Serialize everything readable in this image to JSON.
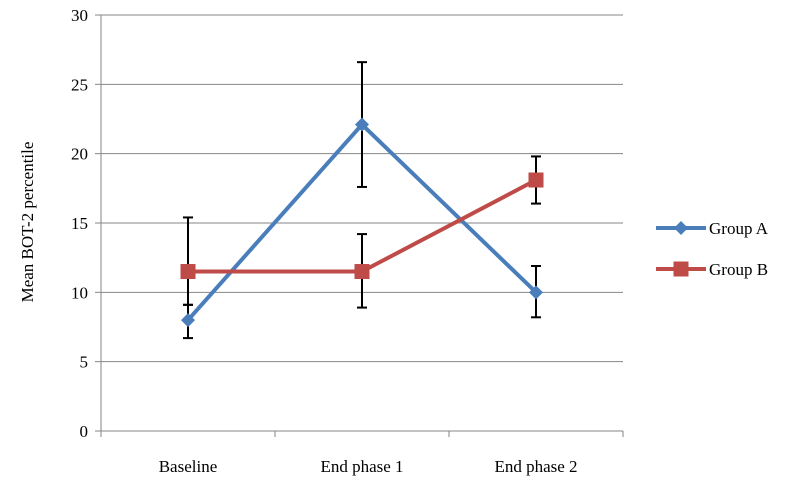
{
  "chart_data": {
    "type": "line",
    "title": "",
    "xlabel": "",
    "ylabel": "Mean BOT-2 percentile",
    "categories": [
      "Baseline",
      "End phase 1",
      "End phase 2"
    ],
    "ylim": [
      0,
      30
    ],
    "yticks": [
      0,
      5,
      10,
      15,
      20,
      25,
      30
    ],
    "grid": true,
    "legend_position": "right",
    "series": [
      {
        "name": "Group A",
        "color": "#4a7ebb",
        "marker": "diamond",
        "values": [
          8.0,
          22.1,
          10.0
        ],
        "error_low": [
          6.7,
          17.6,
          8.2
        ],
        "error_high": [
          9.1,
          26.6,
          11.9
        ]
      },
      {
        "name": "Group B",
        "color": "#be4b48",
        "marker": "square",
        "values": [
          11.5,
          11.5,
          18.1
        ],
        "error_low": [
          9.1,
          8.9,
          16.4
        ],
        "error_high": [
          15.4,
          14.2,
          19.8
        ]
      }
    ]
  }
}
